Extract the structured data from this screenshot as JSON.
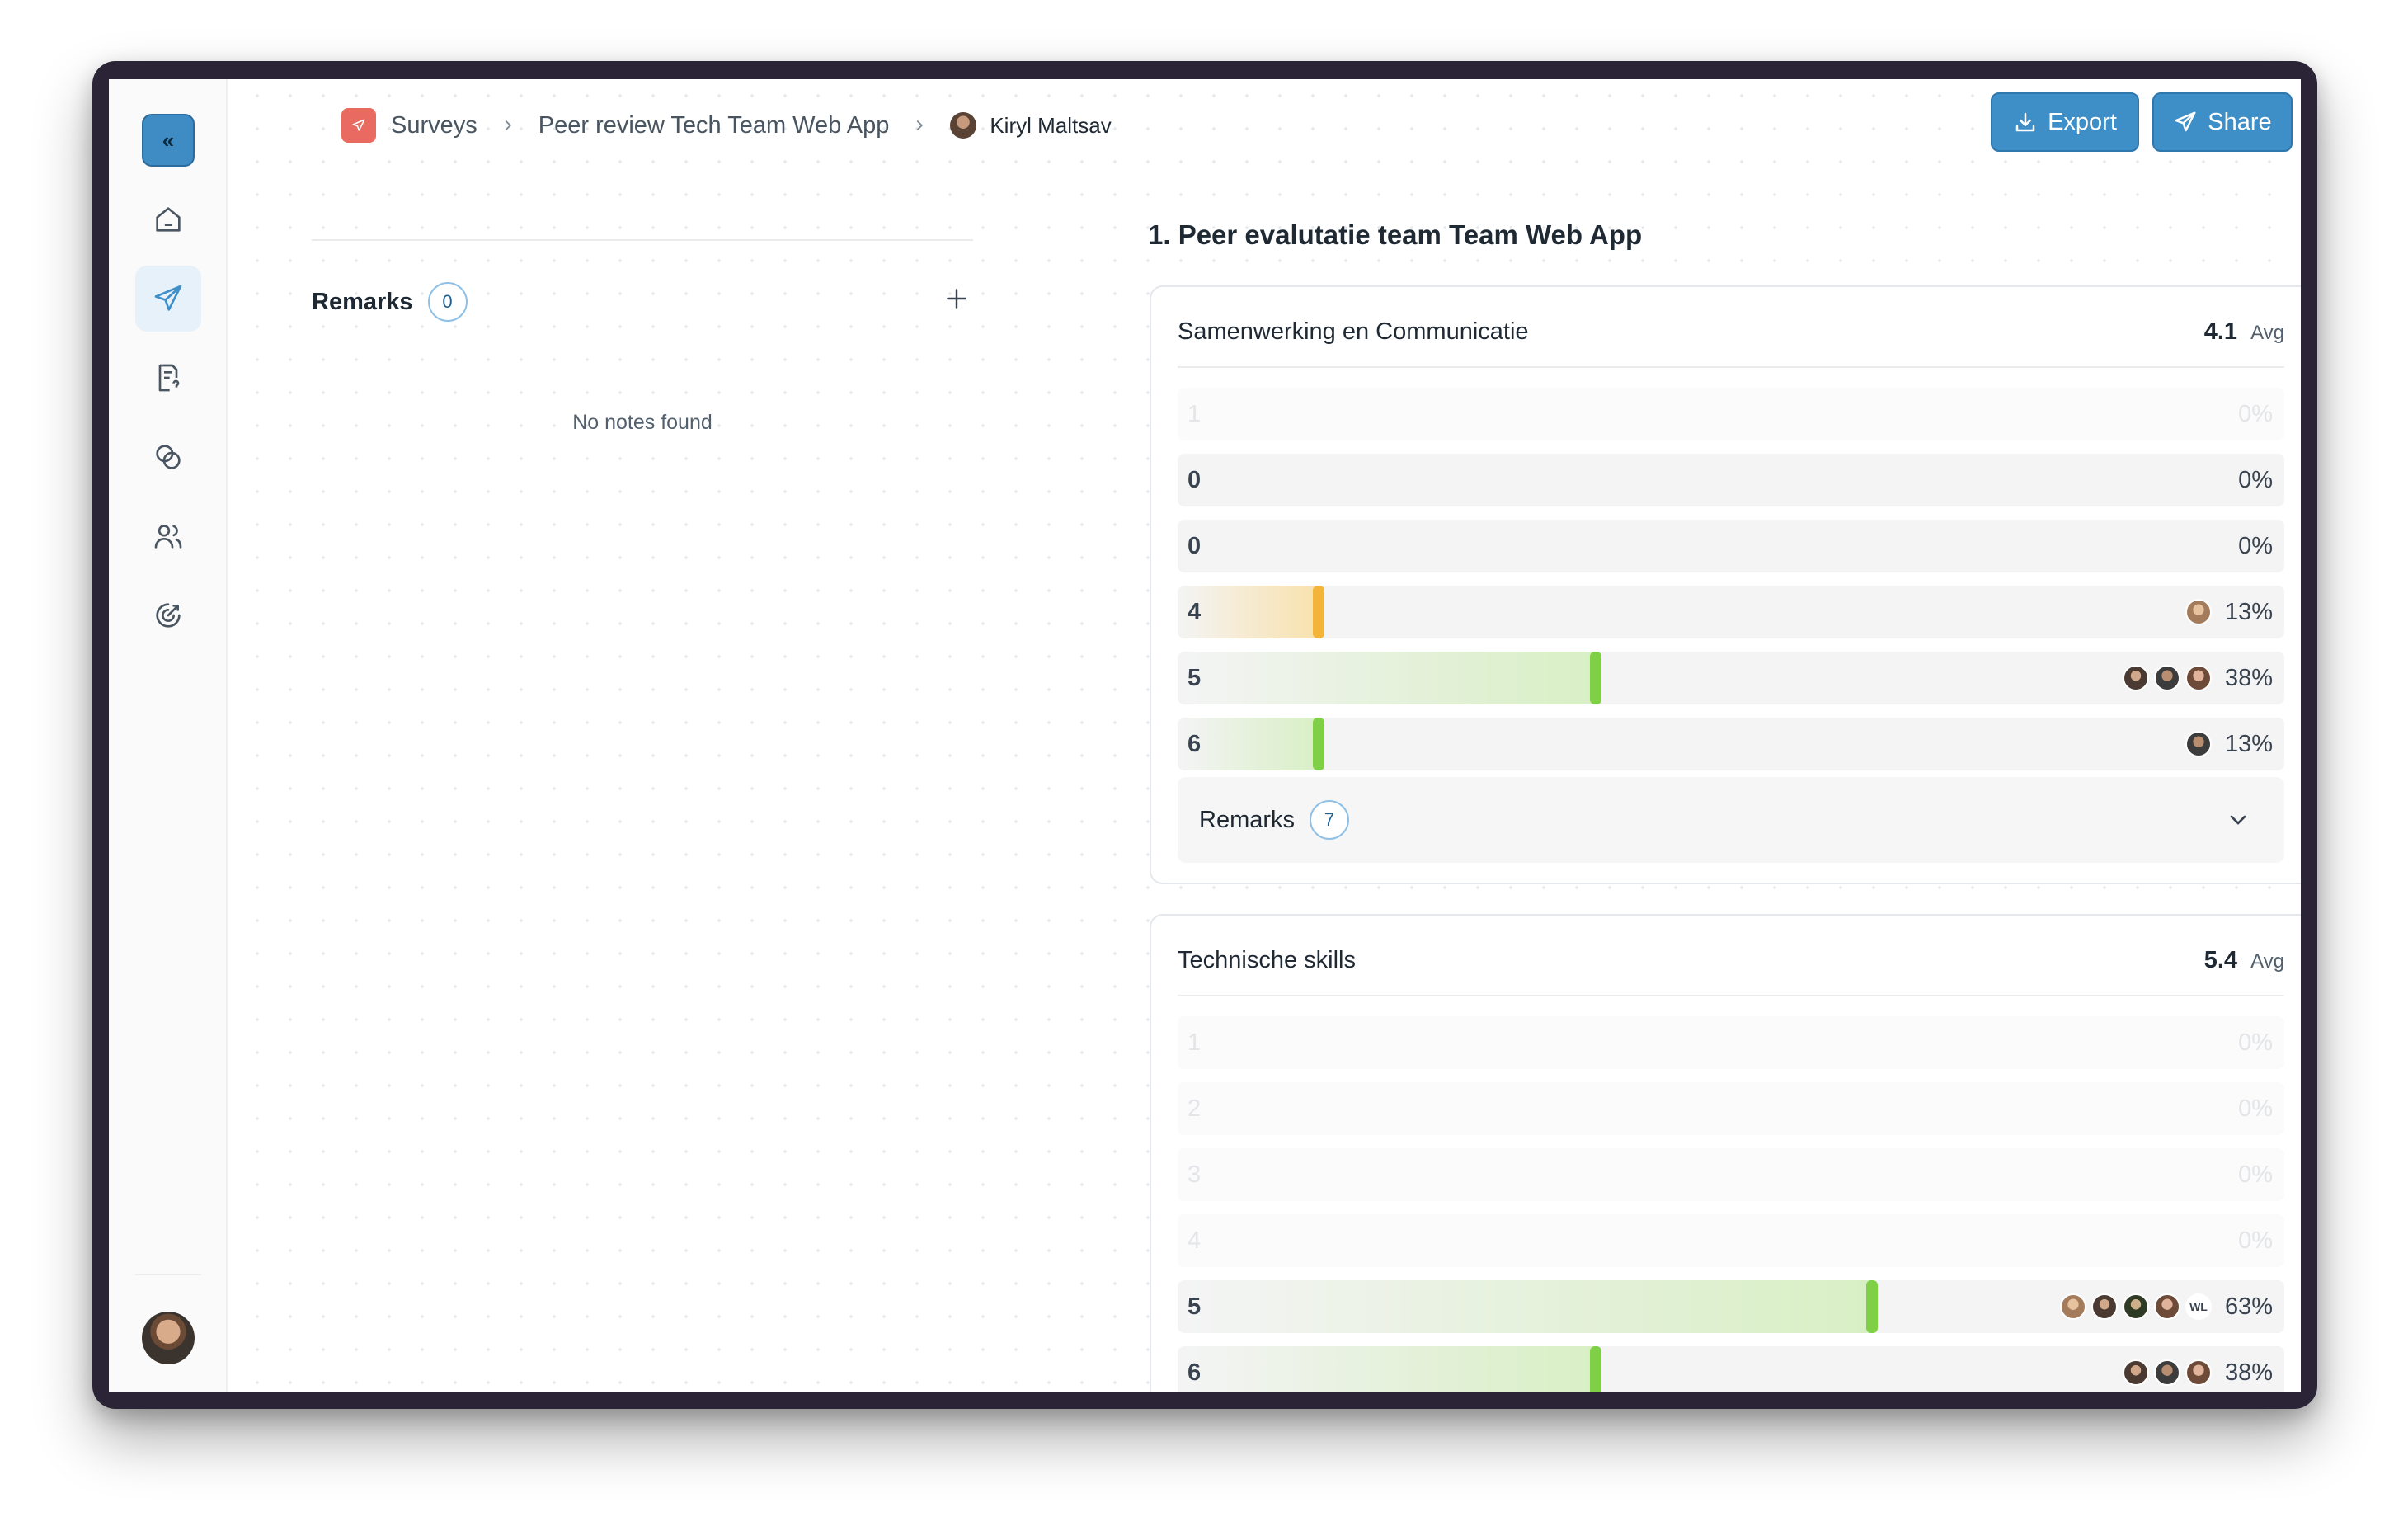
{
  "breadcrumb": {
    "surveys": "Surveys",
    "survey_name": "Peer review Tech Team Web App",
    "person": "Kiryl Maltsav"
  },
  "header": {
    "export_label": "Export",
    "share_label": "Share"
  },
  "sidebar": {
    "logo_text": "«",
    "items": [
      {
        "icon": "home-icon",
        "active": false
      },
      {
        "icon": "send-icon",
        "active": true
      },
      {
        "icon": "survey-document-icon",
        "active": false
      },
      {
        "icon": "overlapping-circles-icon",
        "active": false
      },
      {
        "icon": "users-icon",
        "active": false
      },
      {
        "icon": "target-icon",
        "active": false
      }
    ]
  },
  "left_panel": {
    "remarks_title": "Remarks",
    "remarks_count": "0",
    "empty_text": "No notes found"
  },
  "question": {
    "title": "1. Peer evalutatie team Team Web App"
  },
  "cards": [
    {
      "name": "Samenwerking en Communicatie",
      "avg": "4.1",
      "avg_label": "Avg",
      "rows": [
        {
          "label": "1",
          "percent_text": "0%",
          "percent": 0,
          "faint": true,
          "color": "",
          "avatars": []
        },
        {
          "label": "0",
          "percent_text": "0%",
          "percent": 0,
          "faint": false,
          "color": "",
          "avatars": []
        },
        {
          "label": "0",
          "percent_text": "0%",
          "percent": 0,
          "faint": false,
          "color": "",
          "avatars": []
        },
        {
          "label": "4",
          "percent_text": "13%",
          "percent": 13,
          "faint": false,
          "color": "yellow",
          "avatars": [
            "m1"
          ]
        },
        {
          "label": "5",
          "percent_text": "38%",
          "percent": 38,
          "faint": false,
          "color": "green",
          "avatars": [
            "m2",
            "m3",
            "m5"
          ]
        },
        {
          "label": "6",
          "percent_text": "13%",
          "percent": 13,
          "faint": false,
          "color": "green",
          "avatars": [
            "m3"
          ]
        }
      ],
      "remarks_label": "Remarks",
      "remarks_count": "7"
    },
    {
      "name": "Technische skills",
      "avg": "5.4",
      "avg_label": "Avg",
      "rows": [
        {
          "label": "1",
          "percent_text": "0%",
          "percent": 0,
          "faint": true,
          "color": "",
          "avatars": []
        },
        {
          "label": "2",
          "percent_text": "0%",
          "percent": 0,
          "faint": true,
          "color": "",
          "avatars": []
        },
        {
          "label": "3",
          "percent_text": "0%",
          "percent": 0,
          "faint": true,
          "color": "",
          "avatars": []
        },
        {
          "label": "4",
          "percent_text": "0%",
          "percent": 0,
          "faint": true,
          "color": "",
          "avatars": []
        },
        {
          "label": "5",
          "percent_text": "63%",
          "percent": 63,
          "faint": false,
          "color": "green",
          "avatars": [
            "m1",
            "m2",
            "m4",
            "m5",
            "WL"
          ]
        },
        {
          "label": "6",
          "percent_text": "38%",
          "percent": 38,
          "faint": false,
          "color": "green",
          "avatars": [
            "m2",
            "m3",
            "m5"
          ]
        }
      ]
    }
  ],
  "colors": {
    "accent": "#3e8ec8",
    "surveys_icon": "#e96a60",
    "bar_green": "#7fd046",
    "bar_yellow": "#f2b53a"
  }
}
